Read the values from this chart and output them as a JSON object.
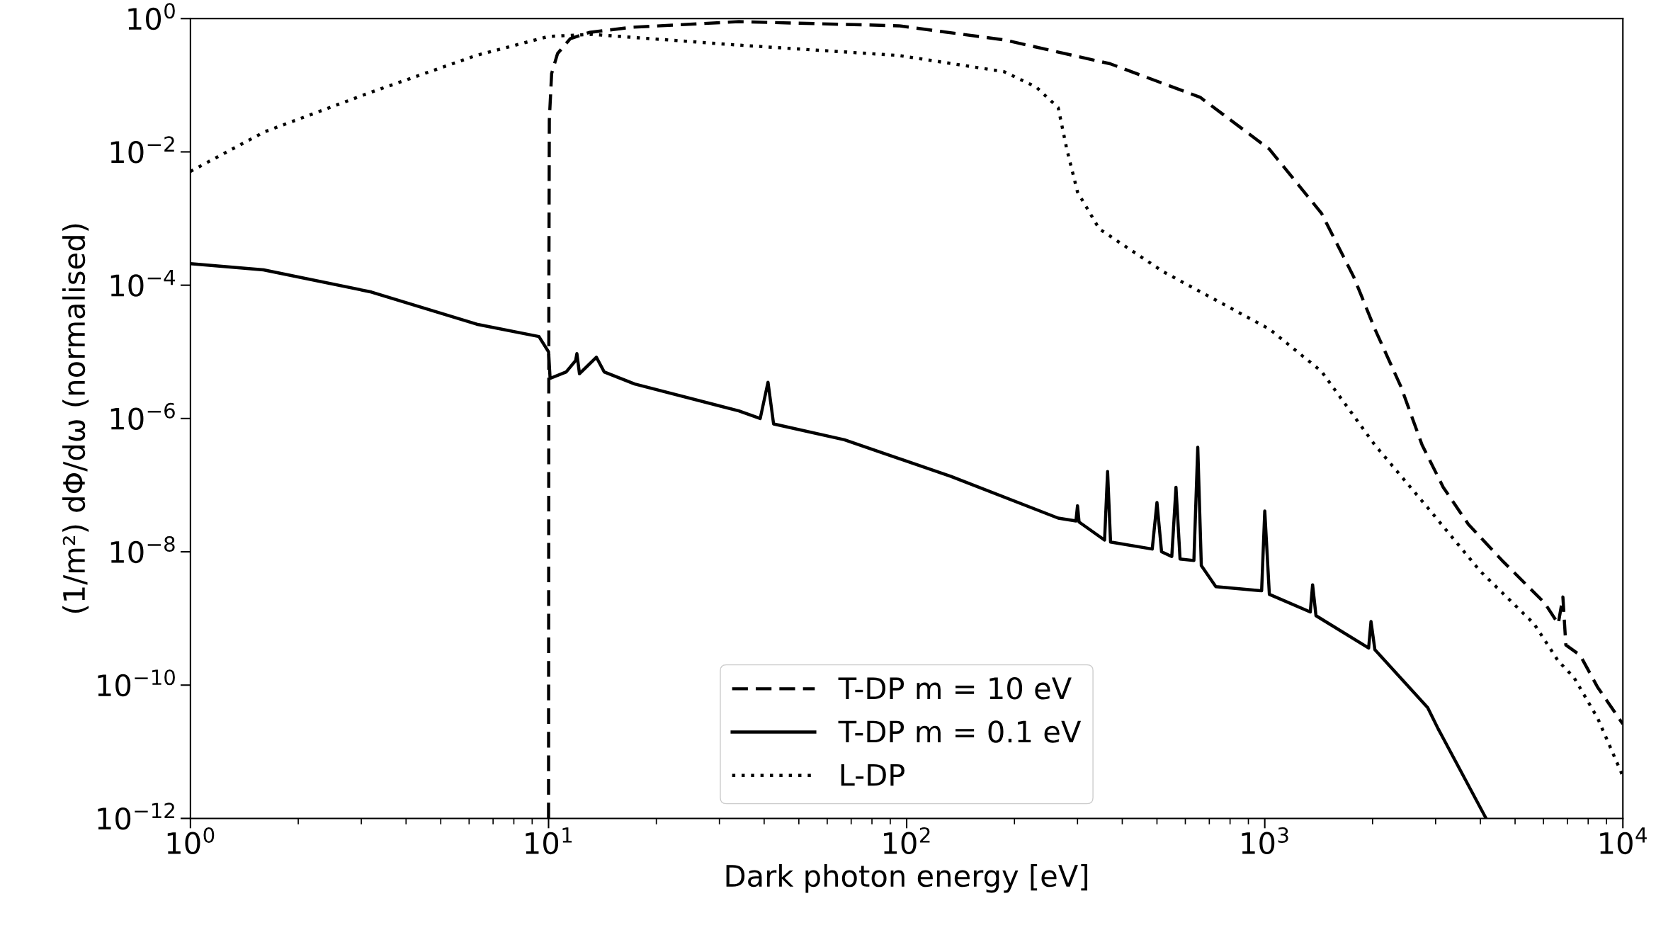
{
  "chart_data": {
    "type": "line",
    "xlabel": "Dark photon energy [eV]",
    "ylabel": "(1/m²) dΦ/dω (normalised)",
    "log": "xy",
    "legend": "bottom",
    "grid": false,
    "xlim": [
      1,
      10000
    ],
    "ylim": [
      1e-12,
      1
    ],
    "xticks": [
      {
        "value": 1,
        "label": "10$^{0}$"
      },
      {
        "value": 10,
        "label": "10$^{1}$"
      },
      {
        "value": 100,
        "label": "10$^{2}$"
      },
      {
        "value": 1000,
        "label": "10$^{3}$"
      },
      {
        "value": 10000,
        "label": "10$^{4}$"
      }
    ],
    "yticks": [
      {
        "value": 1e-12,
        "label": "10$^{−12}$"
      },
      {
        "value": 1e-10,
        "label": "10$^{−10}$"
      },
      {
        "value": 1e-08,
        "label": "10$^{−8}$"
      },
      {
        "value": 1e-06,
        "label": "10$^{−6}$"
      },
      {
        "value": 0.0001,
        "label": "10$^{−4}$"
      },
      {
        "value": 0.01,
        "label": "10$^{−2}$"
      },
      {
        "value": 1,
        "label": "10$^{0}$"
      }
    ],
    "series": [
      {
        "name": "T-DP m = 10 eV",
        "color": "#000000",
        "line_style": "dashed",
        "x": [
          10,
          10.02,
          10.05,
          10.2,
          10.6,
          11.5,
          13,
          17,
          34,
          95,
          187,
          370,
          660,
          1030,
          1440,
          1770,
          2030,
          2400,
          2750,
          3150,
          3700,
          4600,
          6050,
          6600,
          6800,
          6930,
          7600,
          8500,
          10000
        ],
        "values": [
          1e-12,
          0.0001,
          0.03,
          0.15,
          0.3,
          0.5,
          0.62,
          0.74,
          0.9,
          0.78,
          0.48,
          0.21,
          0.066,
          0.011,
          0.0012,
          0.000135,
          2.2e-05,
          3e-06,
          4e-07,
          9.3e-08,
          2.6e-08,
          7.4e-09,
          1.7e-09,
          8.3e-10,
          2.1e-09,
          4e-10,
          2.8e-10,
          9.3e-11,
          2.6e-11
        ]
      },
      {
        "name": "T-DP m = 0.1 eV",
        "color": "#000000",
        "line_style": "solid",
        "x": [
          1,
          1.6,
          3.2,
          6.3,
          9.4,
          10,
          10.1,
          11.2,
          11.9,
          12,
          12.2,
          13.6,
          14.3,
          17.4,
          34,
          39,
          41,
          42.5,
          67,
          133,
          265,
          297,
          300,
          303,
          357,
          364,
          371,
          485,
          500,
          515,
          550,
          565,
          580,
          634,
          650,
          665,
          730,
          980,
          1000,
          1030,
          1340,
          1360,
          1390,
          1950,
          1980,
          2030,
          2850,
          3050,
          4150
        ],
        "values": [
          0.00021,
          0.00017,
          7.9e-05,
          2.6e-05,
          1.7e-05,
          1e-05,
          4e-06,
          5e-06,
          7.4e-06,
          9.4e-06,
          4.7e-06,
          8.3e-06,
          5e-06,
          3.3e-06,
          1.3e-06,
          1e-06,
          3.5e-06,
          8.3e-07,
          4.8e-07,
          1.35e-07,
          3.2e-08,
          2.9e-08,
          4.9e-08,
          2.8e-08,
          1.5e-08,
          1.6e-07,
          1.4e-08,
          1.1e-08,
          5.5e-08,
          1e-08,
          8.5e-09,
          9.3e-08,
          7.8e-09,
          7.4e-09,
          3.7e-07,
          6.2e-09,
          3e-09,
          2.6e-09,
          4.1e-08,
          2.3e-09,
          1.25e-09,
          3.2e-09,
          1.1e-09,
          3.6e-10,
          9e-10,
          3.4e-10,
          4.6e-11,
          2.2e-11,
          1e-12
        ]
      },
      {
        "name": "L-DP",
        "color": "#000000",
        "line_style": "dotted",
        "x": [
          1,
          1.61,
          3.18,
          6.28,
          10,
          13.2,
          34,
          95,
          187,
          230,
          265,
          280,
          300,
          345,
          520,
          1030,
          1440,
          2030,
          2850,
          4000,
          5650,
          6600,
          7300,
          8500,
          10000
        ],
        "values": [
          0.0051,
          0.02,
          0.078,
          0.28,
          0.54,
          0.58,
          0.4,
          0.28,
          0.16,
          0.094,
          0.046,
          0.011,
          0.0025,
          0.0007,
          0.00016,
          2.2e-05,
          5.1e-06,
          4e-07,
          4.6e-08,
          5.1e-09,
          8.3e-10,
          2.3e-10,
          1.3e-10,
          3.2e-11,
          4.3e-12
        ]
      }
    ]
  }
}
